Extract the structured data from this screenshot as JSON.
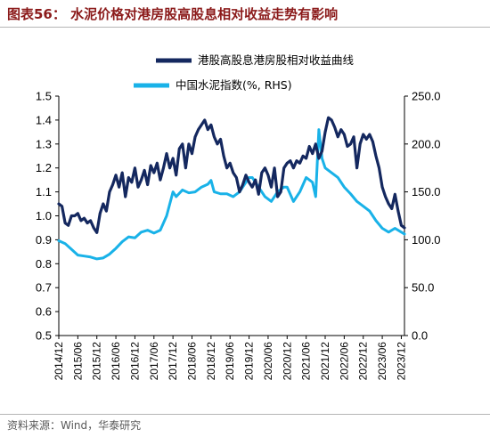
{
  "header": {
    "title": "图表56：  水泥价格对港房股高股息相对收益走势有影响"
  },
  "footer": {
    "source": "资料来源：Wind，华泰研究"
  },
  "colors": {
    "series1": "#14285f",
    "series2": "#19b2e8",
    "title": "#8b1a1a"
  },
  "chart_data": {
    "type": "line",
    "title": "",
    "xlabel": "",
    "ylabel_left": "",
    "ylabel_right": "",
    "legend_placement": "top-center",
    "grid": false,
    "ylim_left": [
      0.5,
      1.5
    ],
    "yticks_left": [
      "0.5",
      "0.6",
      "0.7",
      "0.8",
      "0.9",
      "1.0",
      "1.1",
      "1.2",
      "1.3",
      "1.4",
      "1.5"
    ],
    "ylim_right": [
      0,
      250
    ],
    "yticks_right": [
      "0.0",
      "50.0",
      "100.0",
      "150.0",
      "200.0",
      "250.0"
    ],
    "x_tick_labels": [
      "2014/12",
      "2015/06",
      "2015/12",
      "2016/06",
      "2016/12",
      "2017/06",
      "2017/12",
      "2018/06",
      "2018/12",
      "2019/06",
      "2019/12",
      "2020/06",
      "2020/12",
      "2021/06",
      "2021/12",
      "2022/06",
      "2022/12",
      "2023/06",
      "2023/12"
    ],
    "series": [
      {
        "name": "港股高股息港房股相对收益曲线",
        "axis": "left",
        "color": "#14285f",
        "points": [
          [
            "2014/12",
            1.05
          ],
          [
            "2015/01",
            1.04
          ],
          [
            "2015/02",
            0.97
          ],
          [
            "2015/03",
            0.96
          ],
          [
            "2015/04",
            1.0
          ],
          [
            "2015/05",
            1.0
          ],
          [
            "2015/06",
            1.01
          ],
          [
            "2015/07",
            0.98
          ],
          [
            "2015/08",
            0.99
          ],
          [
            "2015/09",
            0.97
          ],
          [
            "2015/10",
            0.98
          ],
          [
            "2015/11",
            0.95
          ],
          [
            "2015/12",
            0.93
          ],
          [
            "2016/01",
            1.01
          ],
          [
            "2016/02",
            1.05
          ],
          [
            "2016/03",
            1.02
          ],
          [
            "2016/04",
            1.1
          ],
          [
            "2016/05",
            1.13
          ],
          [
            "2016/06",
            1.17
          ],
          [
            "2016/07",
            1.12
          ],
          [
            "2016/08",
            1.18
          ],
          [
            "2016/09",
            1.08
          ],
          [
            "2016/10",
            1.16
          ],
          [
            "2016/11",
            1.14
          ],
          [
            "2016/12",
            1.2
          ],
          [
            "2017/01",
            1.12
          ],
          [
            "2017/02",
            1.15
          ],
          [
            "2017/03",
            1.19
          ],
          [
            "2017/04",
            1.13
          ],
          [
            "2017/05",
            1.21
          ],
          [
            "2017/06",
            1.18
          ],
          [
            "2017/07",
            1.22
          ],
          [
            "2017/08",
            1.15
          ],
          [
            "2017/09",
            1.2
          ],
          [
            "2017/10",
            1.26
          ],
          [
            "2017/11",
            1.2
          ],
          [
            "2017/12",
            1.24
          ],
          [
            "2018/01",
            1.17
          ],
          [
            "2018/02",
            1.28
          ],
          [
            "2018/03",
            1.3
          ],
          [
            "2018/04",
            1.2
          ],
          [
            "2018/05",
            1.3
          ],
          [
            "2018/06",
            1.26
          ],
          [
            "2018/07",
            1.33
          ],
          [
            "2018/08",
            1.36
          ],
          [
            "2018/09",
            1.38
          ],
          [
            "2018/10",
            1.4
          ],
          [
            "2018/11",
            1.36
          ],
          [
            "2018/12",
            1.38
          ],
          [
            "2019/01",
            1.33
          ],
          [
            "2019/02",
            1.3
          ],
          [
            "2019/03",
            1.32
          ],
          [
            "2019/04",
            1.25
          ],
          [
            "2019/05",
            1.2
          ],
          [
            "2019/06",
            1.22
          ],
          [
            "2019/07",
            1.18
          ],
          [
            "2019/08",
            1.16
          ],
          [
            "2019/09",
            1.1
          ],
          [
            "2019/10",
            1.13
          ],
          [
            "2019/11",
            1.17
          ],
          [
            "2019/12",
            1.14
          ],
          [
            "2020/01",
            1.12
          ],
          [
            "2020/02",
            1.15
          ],
          [
            "2020/03",
            1.09
          ],
          [
            "2020/04",
            1.18
          ],
          [
            "2020/05",
            1.2
          ],
          [
            "2020/06",
            1.17
          ],
          [
            "2020/07",
            1.12
          ],
          [
            "2020/08",
            1.2
          ],
          [
            "2020/09",
            1.08
          ],
          [
            "2020/10",
            1.1
          ],
          [
            "2020/11",
            1.2
          ],
          [
            "2020/12",
            1.22
          ],
          [
            "2021/01",
            1.23
          ],
          [
            "2021/02",
            1.2
          ],
          [
            "2021/03",
            1.23
          ],
          [
            "2021/04",
            1.22
          ],
          [
            "2021/05",
            1.25
          ],
          [
            "2021/06",
            1.24
          ],
          [
            "2021/07",
            1.29
          ],
          [
            "2021/08",
            1.26
          ],
          [
            "2021/09",
            1.3
          ],
          [
            "2021/10",
            1.24
          ],
          [
            "2021/11",
            1.27
          ],
          [
            "2021/12",
            1.35
          ],
          [
            "2022/01",
            1.41
          ],
          [
            "2022/02",
            1.4
          ],
          [
            "2022/03",
            1.37
          ],
          [
            "2022/04",
            1.33
          ],
          [
            "2022/05",
            1.36
          ],
          [
            "2022/06",
            1.34
          ],
          [
            "2022/07",
            1.29
          ],
          [
            "2022/08",
            1.3
          ],
          [
            "2022/09",
            1.33
          ],
          [
            "2022/10",
            1.2
          ],
          [
            "2022/11",
            1.3
          ],
          [
            "2022/12",
            1.34
          ],
          [
            "2023/01",
            1.32
          ],
          [
            "2023/02",
            1.34
          ],
          [
            "2023/03",
            1.31
          ],
          [
            "2023/04",
            1.25
          ],
          [
            "2023/05",
            1.2
          ],
          [
            "2023/06",
            1.12
          ],
          [
            "2023/07",
            1.08
          ],
          [
            "2023/08",
            1.05
          ],
          [
            "2023/09",
            1.03
          ],
          [
            "2023/10",
            1.09
          ],
          [
            "2023/11",
            1.02
          ],
          [
            "2023/12",
            0.96
          ],
          [
            "2024/01",
            0.95
          ]
        ]
      },
      {
        "name": "中国水泥指数(%, RHS)",
        "axis": "right",
        "color": "#19b2e8",
        "points": [
          [
            "2014/12",
            99
          ],
          [
            "2015/02",
            96
          ],
          [
            "2015/04",
            90
          ],
          [
            "2015/06",
            84
          ],
          [
            "2015/08",
            83
          ],
          [
            "2015/10",
            82
          ],
          [
            "2015/12",
            80
          ],
          [
            "2016/02",
            81
          ],
          [
            "2016/04",
            85
          ],
          [
            "2016/06",
            91
          ],
          [
            "2016/08",
            98
          ],
          [
            "2016/10",
            103
          ],
          [
            "2016/12",
            102
          ],
          [
            "2017/02",
            108
          ],
          [
            "2017/04",
            110
          ],
          [
            "2017/06",
            107
          ],
          [
            "2017/08",
            110
          ],
          [
            "2017/10",
            125
          ],
          [
            "2017/12",
            150
          ],
          [
            "2018/01",
            145
          ],
          [
            "2018/03",
            152
          ],
          [
            "2018/05",
            149
          ],
          [
            "2018/07",
            150
          ],
          [
            "2018/09",
            155
          ],
          [
            "2018/11",
            158
          ],
          [
            "2018/12",
            162
          ],
          [
            "2019/01",
            150
          ],
          [
            "2019/03",
            148
          ],
          [
            "2019/05",
            148
          ],
          [
            "2019/07",
            145
          ],
          [
            "2019/09",
            150
          ],
          [
            "2019/11",
            160
          ],
          [
            "2019/12",
            165
          ],
          [
            "2020/01",
            165
          ],
          [
            "2020/03",
            155
          ],
          [
            "2020/05",
            145
          ],
          [
            "2020/07",
            140
          ],
          [
            "2020/09",
            150
          ],
          [
            "2020/11",
            155
          ],
          [
            "2020/12",
            155
          ],
          [
            "2021/02",
            140
          ],
          [
            "2021/04",
            150
          ],
          [
            "2021/06",
            165
          ],
          [
            "2021/08",
            160
          ],
          [
            "2021/09",
            145
          ],
          [
            "2021/10",
            215
          ],
          [
            "2021/11",
            185
          ],
          [
            "2021/12",
            175
          ],
          [
            "2022/02",
            170
          ],
          [
            "2022/04",
            165
          ],
          [
            "2022/06",
            155
          ],
          [
            "2022/08",
            148
          ],
          [
            "2022/10",
            140
          ],
          [
            "2022/12",
            135
          ],
          [
            "2023/02",
            130
          ],
          [
            "2023/04",
            120
          ],
          [
            "2023/06",
            112
          ],
          [
            "2023/08",
            108
          ],
          [
            "2023/10",
            112
          ],
          [
            "2023/12",
            108
          ],
          [
            "2024/01",
            106
          ]
        ]
      }
    ]
  }
}
